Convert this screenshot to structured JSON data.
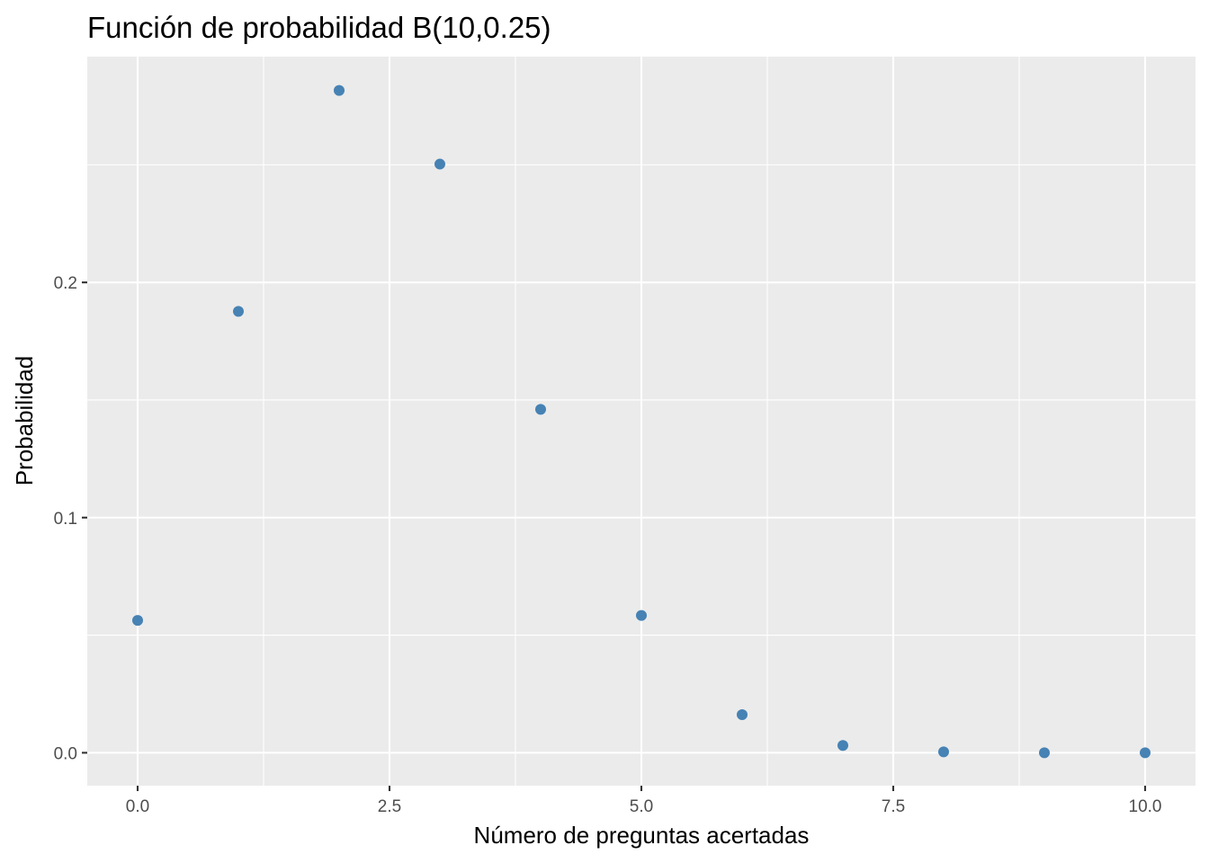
{
  "chart_data": {
    "type": "scatter",
    "title": "Función de probabilidad B(10,0.25)",
    "xlabel": "Número de preguntas acertadas",
    "ylabel": "Probabilidad",
    "x": [
      0,
      1,
      2,
      3,
      4,
      5,
      6,
      7,
      8,
      9,
      10
    ],
    "y": [
      0.0563,
      0.1877,
      0.2816,
      0.2503,
      0.146,
      0.0584,
      0.0162,
      0.0031,
      0.0004,
      0.0,
      0.0
    ],
    "xlim": [
      -0.5,
      10.5
    ],
    "ylim": [
      -0.014,
      0.296
    ],
    "x_ticks": [
      0,
      2.5,
      5,
      7.5,
      10
    ],
    "x_tick_labels": [
      "0.0",
      "2.5",
      "5.0",
      "7.5",
      "10.0"
    ],
    "y_ticks": [
      0,
      0.1,
      0.2
    ],
    "y_tick_labels": [
      "0.0",
      "0.1",
      "0.2"
    ],
    "grid": true,
    "legend": "none",
    "point_color": "#4682b4",
    "panel_color": "#ebebeb"
  }
}
